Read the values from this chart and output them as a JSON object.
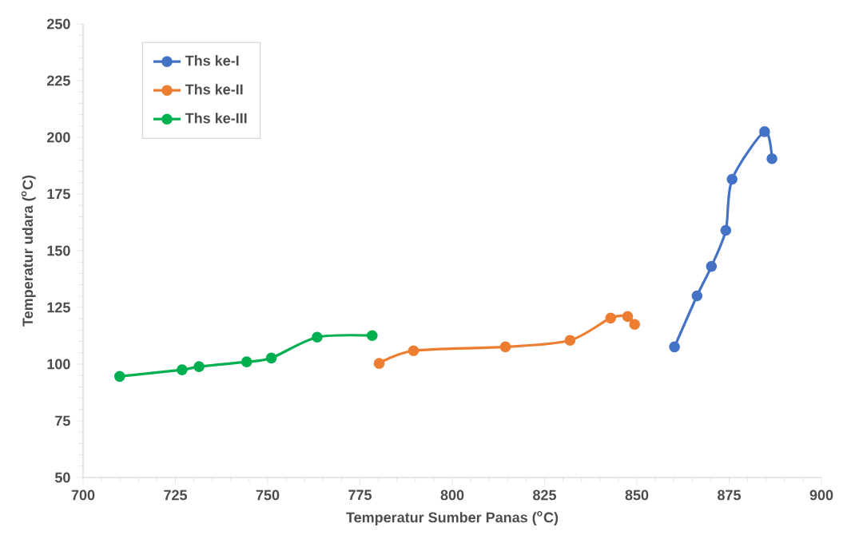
{
  "chart_data": {
    "type": "line",
    "xlabel": "Temperatur Sumber Panas ($^{o}$C)",
    "ylabel": "Temperatur udara ($^{o}$C)",
    "xlim": [
      700,
      900
    ],
    "xticks": [
      700,
      725,
      750,
      775,
      800,
      825,
      850,
      875,
      900
    ],
    "ylim": [
      50,
      250
    ],
    "yticks": [
      50,
      75,
      100,
      125,
      150,
      175,
      200,
      225,
      250
    ],
    "grid": false,
    "legend": "top left",
    "marker": "circle",
    "line_style": "solid",
    "series": [
      {
        "name": "Ths ke-I",
        "color": "#4472c4",
        "x": [
          860.2,
          866.3,
          870.2,
          874.1,
          875.8,
          884.6,
          886.6
        ],
        "values": [
          107.6,
          130.1,
          143.1,
          159.0,
          181.5,
          202.5,
          190.6
        ]
      },
      {
        "name": "Ths ke-II",
        "color": "#ed7d31",
        "x": [
          780.2,
          789.5,
          814.4,
          831.9,
          842.9,
          847.5,
          849.4
        ],
        "values": [
          100.3,
          105.9,
          107.6,
          110.5,
          120.3,
          121.0,
          117.5
        ]
      },
      {
        "name": "Ths ke-III",
        "color": "#00b050",
        "x": [
          709.9,
          726.8,
          731.4,
          744.3,
          751.0,
          763.4,
          778.3
        ],
        "values": [
          94.6,
          97.5,
          98.9,
          101.0,
          102.7,
          111.9,
          112.6
        ]
      }
    ]
  }
}
